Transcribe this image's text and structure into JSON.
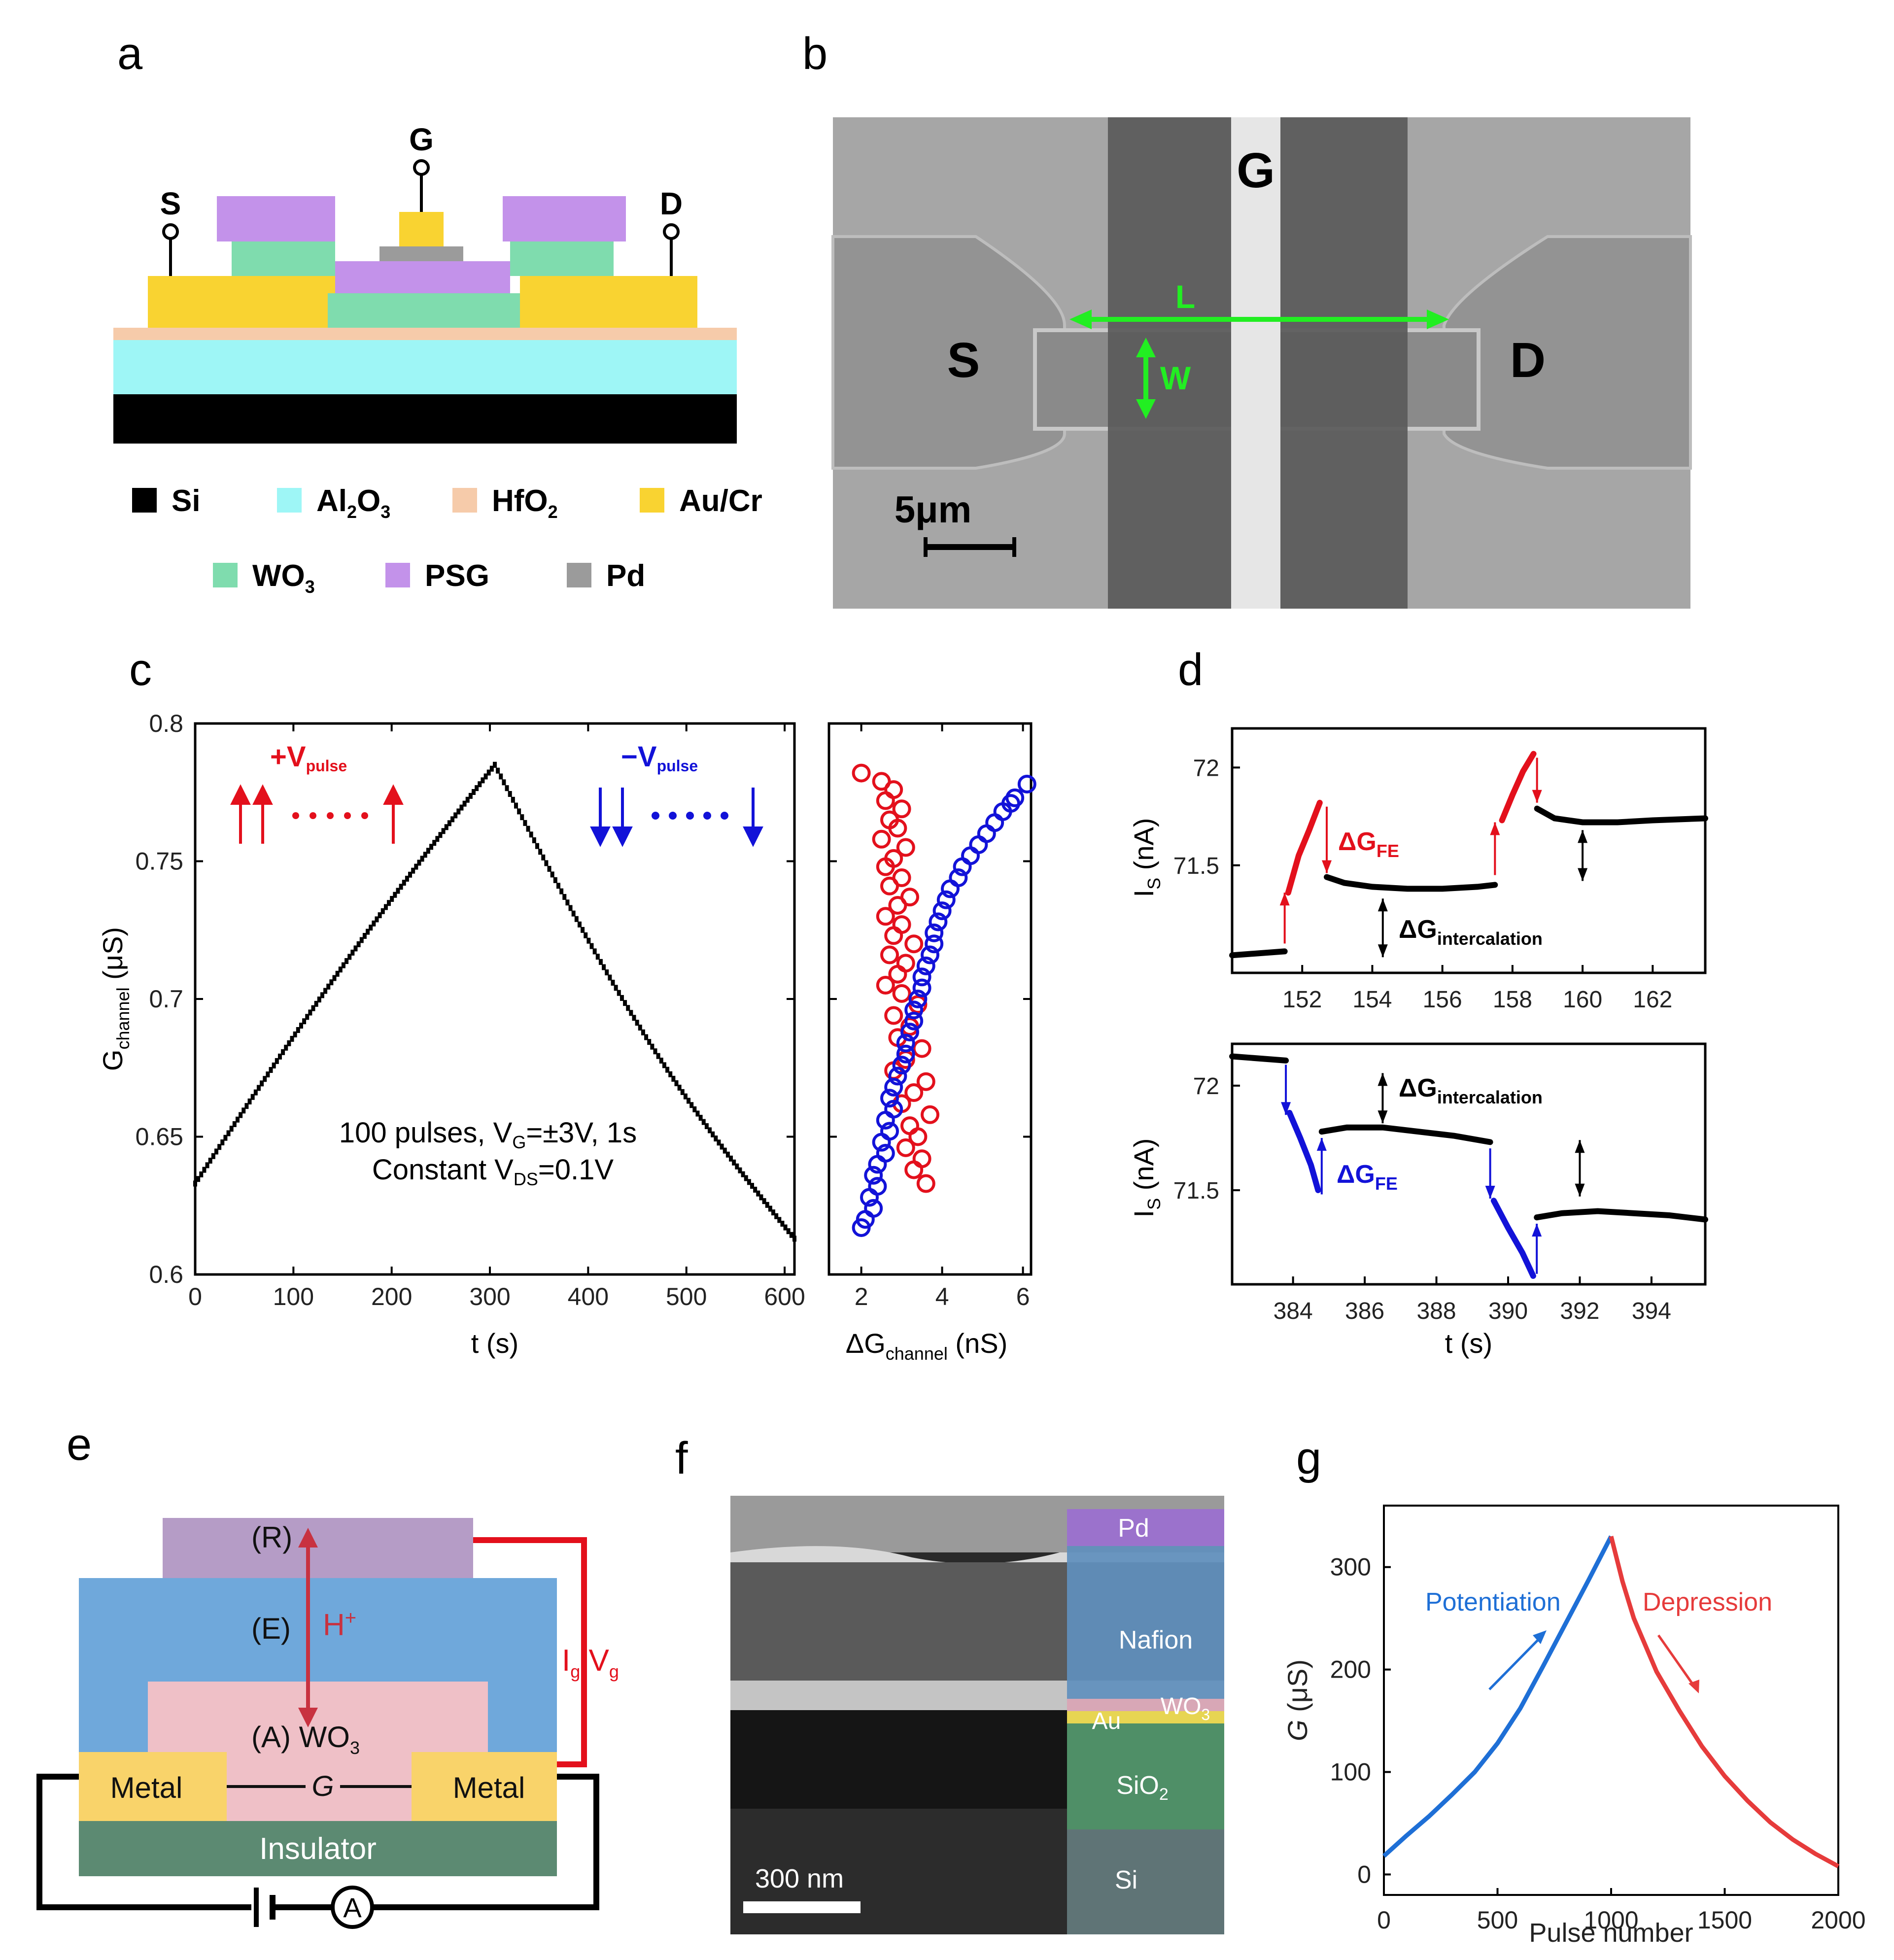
{
  "panels": {
    "a": {
      "letter": "a",
      "terminals": {
        "S": "S",
        "G": "G",
        "D": "D"
      },
      "legend": [
        {
          "name": "Si",
          "color": "#000000"
        },
        {
          "name": "Al",
          "sub1": "2",
          "mid": "O",
          "sub2": "3",
          "color": "#9ef6f6"
        },
        {
          "name": "HfO",
          "sub1": "2",
          "color": "#f6cbaa"
        },
        {
          "name": "Au/Cr",
          "color": "#f9d331"
        },
        {
          "name": "WO",
          "sub1": "3",
          "color": "#7fdcae"
        },
        {
          "name": "PSG",
          "color": "#c392ea"
        },
        {
          "name": "Pd",
          "color": "#9b9b9b"
        }
      ]
    },
    "b": {
      "letter": "b",
      "labels": {
        "G": "G",
        "S": "S",
        "D": "D",
        "L": "L",
        "W": "W"
      },
      "scale_bar": "5μm"
    },
    "c": {
      "letter": "c",
      "annot_plus": "+V",
      "annot_minus": "−V",
      "annot_sub": "pulse",
      "note_line1_a": "100 pulses, V",
      "note_line1_sub": "G",
      "note_line1_b": "=±3V, 1s",
      "note_line2_a": "Constant V",
      "note_line2_sub": "DS",
      "note_line2_b": "=0.1V"
    },
    "d": {
      "letter": "d",
      "dG_FE": "ΔG",
      "dG_FE_sub": "FE",
      "dG_int": "ΔG",
      "dG_int_sub": "intercalation"
    },
    "e": {
      "letter": "e",
      "R": "(R)",
      "E": "(E)",
      "H": "H",
      "H_sup": "+",
      "A": "(A) WO",
      "A_sub": "3",
      "metal_left": "Metal",
      "metal_right": "Metal",
      "G": "G",
      "insulator": "Insulator",
      "ig": "I",
      "ig_sub": "g",
      "vg_sep": ",V",
      "vg_sub": "g",
      "ammeter": "A"
    },
    "f": {
      "letter": "f",
      "layers": {
        "Pd": "Pd",
        "Nafion": "Nafion",
        "WO3": "WO",
        "WO3_sub": "3",
        "Au": "Au",
        "SiO2": "SiO",
        "SiO2_sub": "2",
        "Si": "Si"
      },
      "scale_bar": "300 nm"
    },
    "g": {
      "letter": "g",
      "potentiation": "Potentiation",
      "depression": "Depression"
    }
  },
  "colors": {
    "red": "#e3101c",
    "blue": "#1212d8",
    "g_blue": "#1e6fd6",
    "g_red": "#e63b3b"
  },
  "chart_data": [
    {
      "id": "c-main",
      "type": "scatter",
      "title": "",
      "xlabel": "t (s)",
      "ylabel": "G",
      "ylabel_sub": "channel",
      "ylabel_unit": " (μS)",
      "xlim": [
        0,
        610
      ],
      "ylim": [
        0.6,
        0.8
      ],
      "xticks": [
        0,
        100,
        200,
        300,
        400,
        500,
        600
      ],
      "yticks": [
        0.6,
        0.65,
        0.7,
        0.75,
        0.8
      ],
      "ytick_labels": [
        "0.6",
        "0.65",
        "0.7",
        "0.75",
        "0.8"
      ],
      "series": [
        {
          "name": "potentiation",
          "t_start": 0,
          "t_end": 305,
          "g_start": 0.633,
          "g_end": 0.785,
          "n": 100,
          "color": "#000000"
        },
        {
          "name": "depression",
          "t_start": 305,
          "t_end": 610,
          "g_start": 0.785,
          "g_end": 0.613,
          "n": 100,
          "color": "#000000"
        }
      ]
    },
    {
      "id": "c-side",
      "type": "scatter",
      "xlabel": "ΔG",
      "xlabel_sub": "channel",
      "xlabel_unit": " (nS)",
      "xlim": [
        1.2,
        6.2
      ],
      "ylim": [
        0.6,
        0.8
      ],
      "xticks": [
        2,
        4,
        6
      ],
      "series": [
        {
          "name": "red",
          "color": "#e3101c",
          "points": [
            [
              2.0,
              0.782
            ],
            [
              2.5,
              0.779
            ],
            [
              2.8,
              0.776
            ],
            [
              2.6,
              0.772
            ],
            [
              3.0,
              0.769
            ],
            [
              2.7,
              0.765
            ],
            [
              2.9,
              0.762
            ],
            [
              2.5,
              0.758
            ],
            [
              3.1,
              0.755
            ],
            [
              2.8,
              0.751
            ],
            [
              2.6,
              0.748
            ],
            [
              3.0,
              0.744
            ],
            [
              2.7,
              0.741
            ],
            [
              3.2,
              0.737
            ],
            [
              2.9,
              0.734
            ],
            [
              2.6,
              0.73
            ],
            [
              3.0,
              0.727
            ],
            [
              2.8,
              0.723
            ],
            [
              3.3,
              0.72
            ],
            [
              2.7,
              0.716
            ],
            [
              3.1,
              0.713
            ],
            [
              2.9,
              0.709
            ],
            [
              2.6,
              0.705
            ],
            [
              3.0,
              0.702
            ],
            [
              3.4,
              0.698
            ],
            [
              2.8,
              0.694
            ],
            [
              3.2,
              0.69
            ],
            [
              2.9,
              0.686
            ],
            [
              3.5,
              0.682
            ],
            [
              3.1,
              0.678
            ],
            [
              2.8,
              0.674
            ],
            [
              3.6,
              0.67
            ],
            [
              3.3,
              0.666
            ],
            [
              3.0,
              0.662
            ],
            [
              3.7,
              0.658
            ],
            [
              3.2,
              0.654
            ],
            [
              3.4,
              0.65
            ],
            [
              3.1,
              0.646
            ],
            [
              3.5,
              0.642
            ],
            [
              3.3,
              0.638
            ],
            [
              3.6,
              0.633
            ]
          ]
        },
        {
          "name": "blue",
          "color": "#1212d8",
          "points": [
            [
              6.1,
              0.778
            ],
            [
              5.8,
              0.773
            ],
            [
              5.5,
              0.768
            ],
            [
              5.7,
              0.771
            ],
            [
              5.3,
              0.764
            ],
            [
              5.1,
              0.76
            ],
            [
              4.9,
              0.756
            ],
            [
              4.7,
              0.752
            ],
            [
              4.5,
              0.748
            ],
            [
              4.4,
              0.744
            ],
            [
              4.2,
              0.74
            ],
            [
              4.1,
              0.736
            ],
            [
              4.0,
              0.732
            ],
            [
              3.9,
              0.728
            ],
            [
              3.8,
              0.724
            ],
            [
              3.8,
              0.72
            ],
            [
              3.7,
              0.716
            ],
            [
              3.6,
              0.712
            ],
            [
              3.5,
              0.708
            ],
            [
              3.5,
              0.704
            ],
            [
              3.4,
              0.7
            ],
            [
              3.3,
              0.696
            ],
            [
              3.3,
              0.692
            ],
            [
              3.2,
              0.688
            ],
            [
              3.1,
              0.684
            ],
            [
              3.1,
              0.68
            ],
            [
              3.0,
              0.676
            ],
            [
              2.9,
              0.672
            ],
            [
              2.8,
              0.668
            ],
            [
              2.7,
              0.664
            ],
            [
              2.8,
              0.66
            ],
            [
              2.6,
              0.656
            ],
            [
              2.7,
              0.652
            ],
            [
              2.5,
              0.648
            ],
            [
              2.6,
              0.644
            ],
            [
              2.4,
              0.64
            ],
            [
              2.3,
              0.636
            ],
            [
              2.4,
              0.632
            ],
            [
              2.2,
              0.628
            ],
            [
              2.3,
              0.624
            ],
            [
              2.1,
              0.62
            ],
            [
              2.0,
              0.617
            ]
          ]
        }
      ]
    },
    {
      "id": "d-top",
      "type": "line",
      "ylabel": "I",
      "ylabel_sub": "S",
      "ylabel_unit": " (nA)",
      "xlim": [
        150.0,
        163.5
      ],
      "ylim": [
        70.95,
        72.2
      ],
      "xticks": [
        152,
        154,
        156,
        158,
        160,
        162
      ],
      "yticks": [
        71.5,
        72
      ],
      "ytick_labels": [
        "71.5",
        "72"
      ],
      "segments": [
        {
          "color": "#000000",
          "points": [
            [
              150.0,
              71.04
            ],
            [
              151.5,
              71.06
            ]
          ]
        },
        {
          "color": "#e3101c",
          "points": [
            [
              151.6,
              71.36
            ],
            [
              151.9,
              71.55
            ],
            [
              152.2,
              71.68
            ],
            [
              152.5,
              71.82
            ]
          ]
        },
        {
          "color": "#000000",
          "points": [
            [
              152.7,
              71.44
            ],
            [
              153.2,
              71.41
            ],
            [
              154.0,
              71.39
            ],
            [
              155.0,
              71.38
            ],
            [
              156.0,
              71.38
            ],
            [
              157.0,
              71.39
            ],
            [
              157.5,
              71.4
            ]
          ]
        },
        {
          "color": "#e3101c",
          "points": [
            [
              157.7,
              71.73
            ],
            [
              158.0,
              71.86
            ],
            [
              158.3,
              71.98
            ],
            [
              158.6,
              72.07
            ]
          ]
        },
        {
          "color": "#000000",
          "points": [
            [
              158.7,
              71.79
            ],
            [
              159.2,
              71.74
            ],
            [
              160.0,
              71.72
            ],
            [
              161.0,
              71.72
            ],
            [
              162.0,
              71.73
            ],
            [
              163.5,
              71.74
            ]
          ]
        }
      ],
      "arrows": [
        {
          "color": "#e3101c",
          "x": 151.5,
          "y_from": 71.1,
          "y_to": 71.36
        },
        {
          "color": "#e3101c",
          "x": 152.7,
          "y_from": 71.8,
          "y_to": 71.46
        },
        {
          "color": "#e3101c",
          "x": 157.5,
          "y_from": 71.45,
          "y_to": 71.72
        },
        {
          "color": "#e3101c",
          "x": 158.7,
          "y_from": 72.05,
          "y_to": 71.82
        },
        {
          "color": "#000000",
          "x": 154.3,
          "y_from": 71.33,
          "y_to": 71.03,
          "double": true
        },
        {
          "color": "#000000",
          "x": 160.0,
          "y_from": 71.68,
          "y_to": 71.42,
          "double": true
        }
      ]
    },
    {
      "id": "d-bottom",
      "type": "line",
      "xlabel": "t (s)",
      "ylabel": "I",
      "ylabel_sub": "S",
      "ylabel_unit": " (nA)",
      "xlim": [
        382.3,
        395.5
      ],
      "ylim": [
        71.05,
        72.2
      ],
      "xticks": [
        384,
        386,
        388,
        390,
        392,
        394
      ],
      "yticks": [
        71.5,
        72
      ],
      "ytick_labels": [
        "71.5",
        "72"
      ],
      "segments": [
        {
          "color": "#000000",
          "points": [
            [
              382.3,
              72.14
            ],
            [
              383.8,
              72.12
            ]
          ]
        },
        {
          "color": "#1212d8",
          "points": [
            [
              383.9,
              71.87
            ],
            [
              384.2,
              71.75
            ],
            [
              384.5,
              71.62
            ],
            [
              384.7,
              71.5
            ]
          ]
        },
        {
          "color": "#000000",
          "points": [
            [
              384.8,
              71.78
            ],
            [
              385.5,
              71.8
            ],
            [
              386.5,
              71.8
            ],
            [
              387.5,
              71.78
            ],
            [
              388.5,
              71.76
            ],
            [
              389.5,
              71.73
            ]
          ]
        },
        {
          "color": "#1212d8",
          "points": [
            [
              389.6,
              71.45
            ],
            [
              390.0,
              71.32
            ],
            [
              390.4,
              71.2
            ],
            [
              390.7,
              71.09
            ]
          ]
        },
        {
          "color": "#000000",
          "points": [
            [
              390.8,
              71.37
            ],
            [
              391.5,
              71.39
            ],
            [
              392.5,
              71.4
            ],
            [
              393.5,
              71.39
            ],
            [
              394.5,
              71.38
            ],
            [
              395.5,
              71.36
            ]
          ]
        }
      ],
      "arrows": [
        {
          "color": "#1212d8",
          "x": 383.8,
          "y_from": 72.1,
          "y_to": 71.86
        },
        {
          "color": "#1212d8",
          "x": 384.8,
          "y_from": 71.48,
          "y_to": 71.75
        },
        {
          "color": "#1212d8",
          "x": 389.5,
          "y_from": 71.7,
          "y_to": 71.46
        },
        {
          "color": "#1212d8",
          "x": 390.8,
          "y_from": 71.1,
          "y_to": 71.34
        },
        {
          "color": "#000000",
          "x": 386.5,
          "y_from": 72.06,
          "y_to": 71.82,
          "double": true
        },
        {
          "color": "#000000",
          "x": 392.0,
          "y_from": 71.74,
          "y_to": 71.47,
          "double": true
        }
      ]
    },
    {
      "id": "g",
      "type": "line",
      "xlabel": "Pulse number",
      "ylabel": "G",
      "ylabel_unit": " (μS)",
      "xlim": [
        0,
        2000
      ],
      "ylim": [
        -20,
        360
      ],
      "xticks": [
        0,
        500,
        1000,
        1500,
        2000
      ],
      "yticks": [
        0,
        100,
        200,
        300
      ],
      "series": [
        {
          "name": "Potentiation",
          "color": "#1e6fd6",
          "points": [
            [
              0,
              18
            ],
            [
              100,
              38
            ],
            [
              200,
              57
            ],
            [
              300,
              78
            ],
            [
              400,
              100
            ],
            [
              500,
              128
            ],
            [
              600,
              162
            ],
            [
              700,
              203
            ],
            [
              800,
              245
            ],
            [
              900,
              287
            ],
            [
              1000,
              330
            ]
          ]
        },
        {
          "name": "Depression",
          "color": "#e63b3b",
          "points": [
            [
              1000,
              330
            ],
            [
              1050,
              286
            ],
            [
              1100,
              250
            ],
            [
              1200,
              198
            ],
            [
              1300,
              160
            ],
            [
              1400,
              125
            ],
            [
              1500,
              96
            ],
            [
              1600,
              72
            ],
            [
              1700,
              51
            ],
            [
              1800,
              34
            ],
            [
              1900,
              20
            ],
            [
              2000,
              8
            ]
          ]
        }
      ]
    }
  ]
}
